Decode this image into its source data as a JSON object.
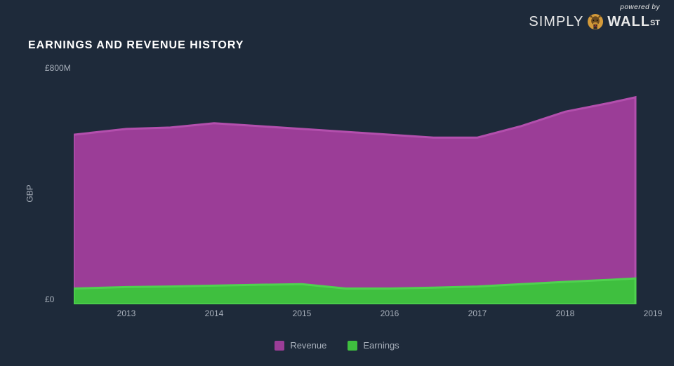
{
  "brand": {
    "powered": "powered by",
    "simply": "SIMPLY",
    "wall": "WALL",
    "st": "ST"
  },
  "chart": {
    "title": "EARNINGS AND REVENUE HISTORY",
    "type": "area",
    "axis_title": "GBP",
    "ylabel_top": "£800M",
    "ylabel_bot": "£0",
    "ylim": [
      0,
      800
    ],
    "background_color": "#1e2a3a",
    "text_color": "#a8b0bb",
    "title_color": "#ffffff",
    "title_fontsize": 16,
    "label_fontsize": 12,
    "x_ticks": [
      2013,
      2014,
      2015,
      2016,
      2017,
      2018,
      2019
    ],
    "x_domain": [
      2012.4,
      2019
    ],
    "series": [
      {
        "name": "Revenue",
        "color": "#9b3d97",
        "stroke": "#b34fad",
        "points": [
          {
            "x": 2012.4,
            "y": 590
          },
          {
            "x": 2013.0,
            "y": 610
          },
          {
            "x": 2013.5,
            "y": 615
          },
          {
            "x": 2014.0,
            "y": 630
          },
          {
            "x": 2014.5,
            "y": 620
          },
          {
            "x": 2015.0,
            "y": 610
          },
          {
            "x": 2015.5,
            "y": 600
          },
          {
            "x": 2016.0,
            "y": 590
          },
          {
            "x": 2016.5,
            "y": 580
          },
          {
            "x": 2017.0,
            "y": 580
          },
          {
            "x": 2017.5,
            "y": 620
          },
          {
            "x": 2018.0,
            "y": 670
          },
          {
            "x": 2018.5,
            "y": 700
          },
          {
            "x": 2018.8,
            "y": 720
          }
        ]
      },
      {
        "name": "Earnings",
        "color": "#3fbf3f",
        "stroke": "#4fd24f",
        "points": [
          {
            "x": 2012.4,
            "y": 55
          },
          {
            "x": 2013.0,
            "y": 60
          },
          {
            "x": 2013.5,
            "y": 62
          },
          {
            "x": 2014.0,
            "y": 65
          },
          {
            "x": 2014.5,
            "y": 68
          },
          {
            "x": 2015.0,
            "y": 70
          },
          {
            "x": 2015.5,
            "y": 55
          },
          {
            "x": 2016.0,
            "y": 55
          },
          {
            "x": 2016.5,
            "y": 58
          },
          {
            "x": 2017.0,
            "y": 62
          },
          {
            "x": 2017.5,
            "y": 70
          },
          {
            "x": 2018.0,
            "y": 78
          },
          {
            "x": 2018.5,
            "y": 85
          },
          {
            "x": 2018.8,
            "y": 90
          }
        ]
      }
    ],
    "legend": [
      {
        "label": "Revenue",
        "color": "#9b3d97"
      },
      {
        "label": "Earnings",
        "color": "#3fbf3f"
      }
    ]
  }
}
